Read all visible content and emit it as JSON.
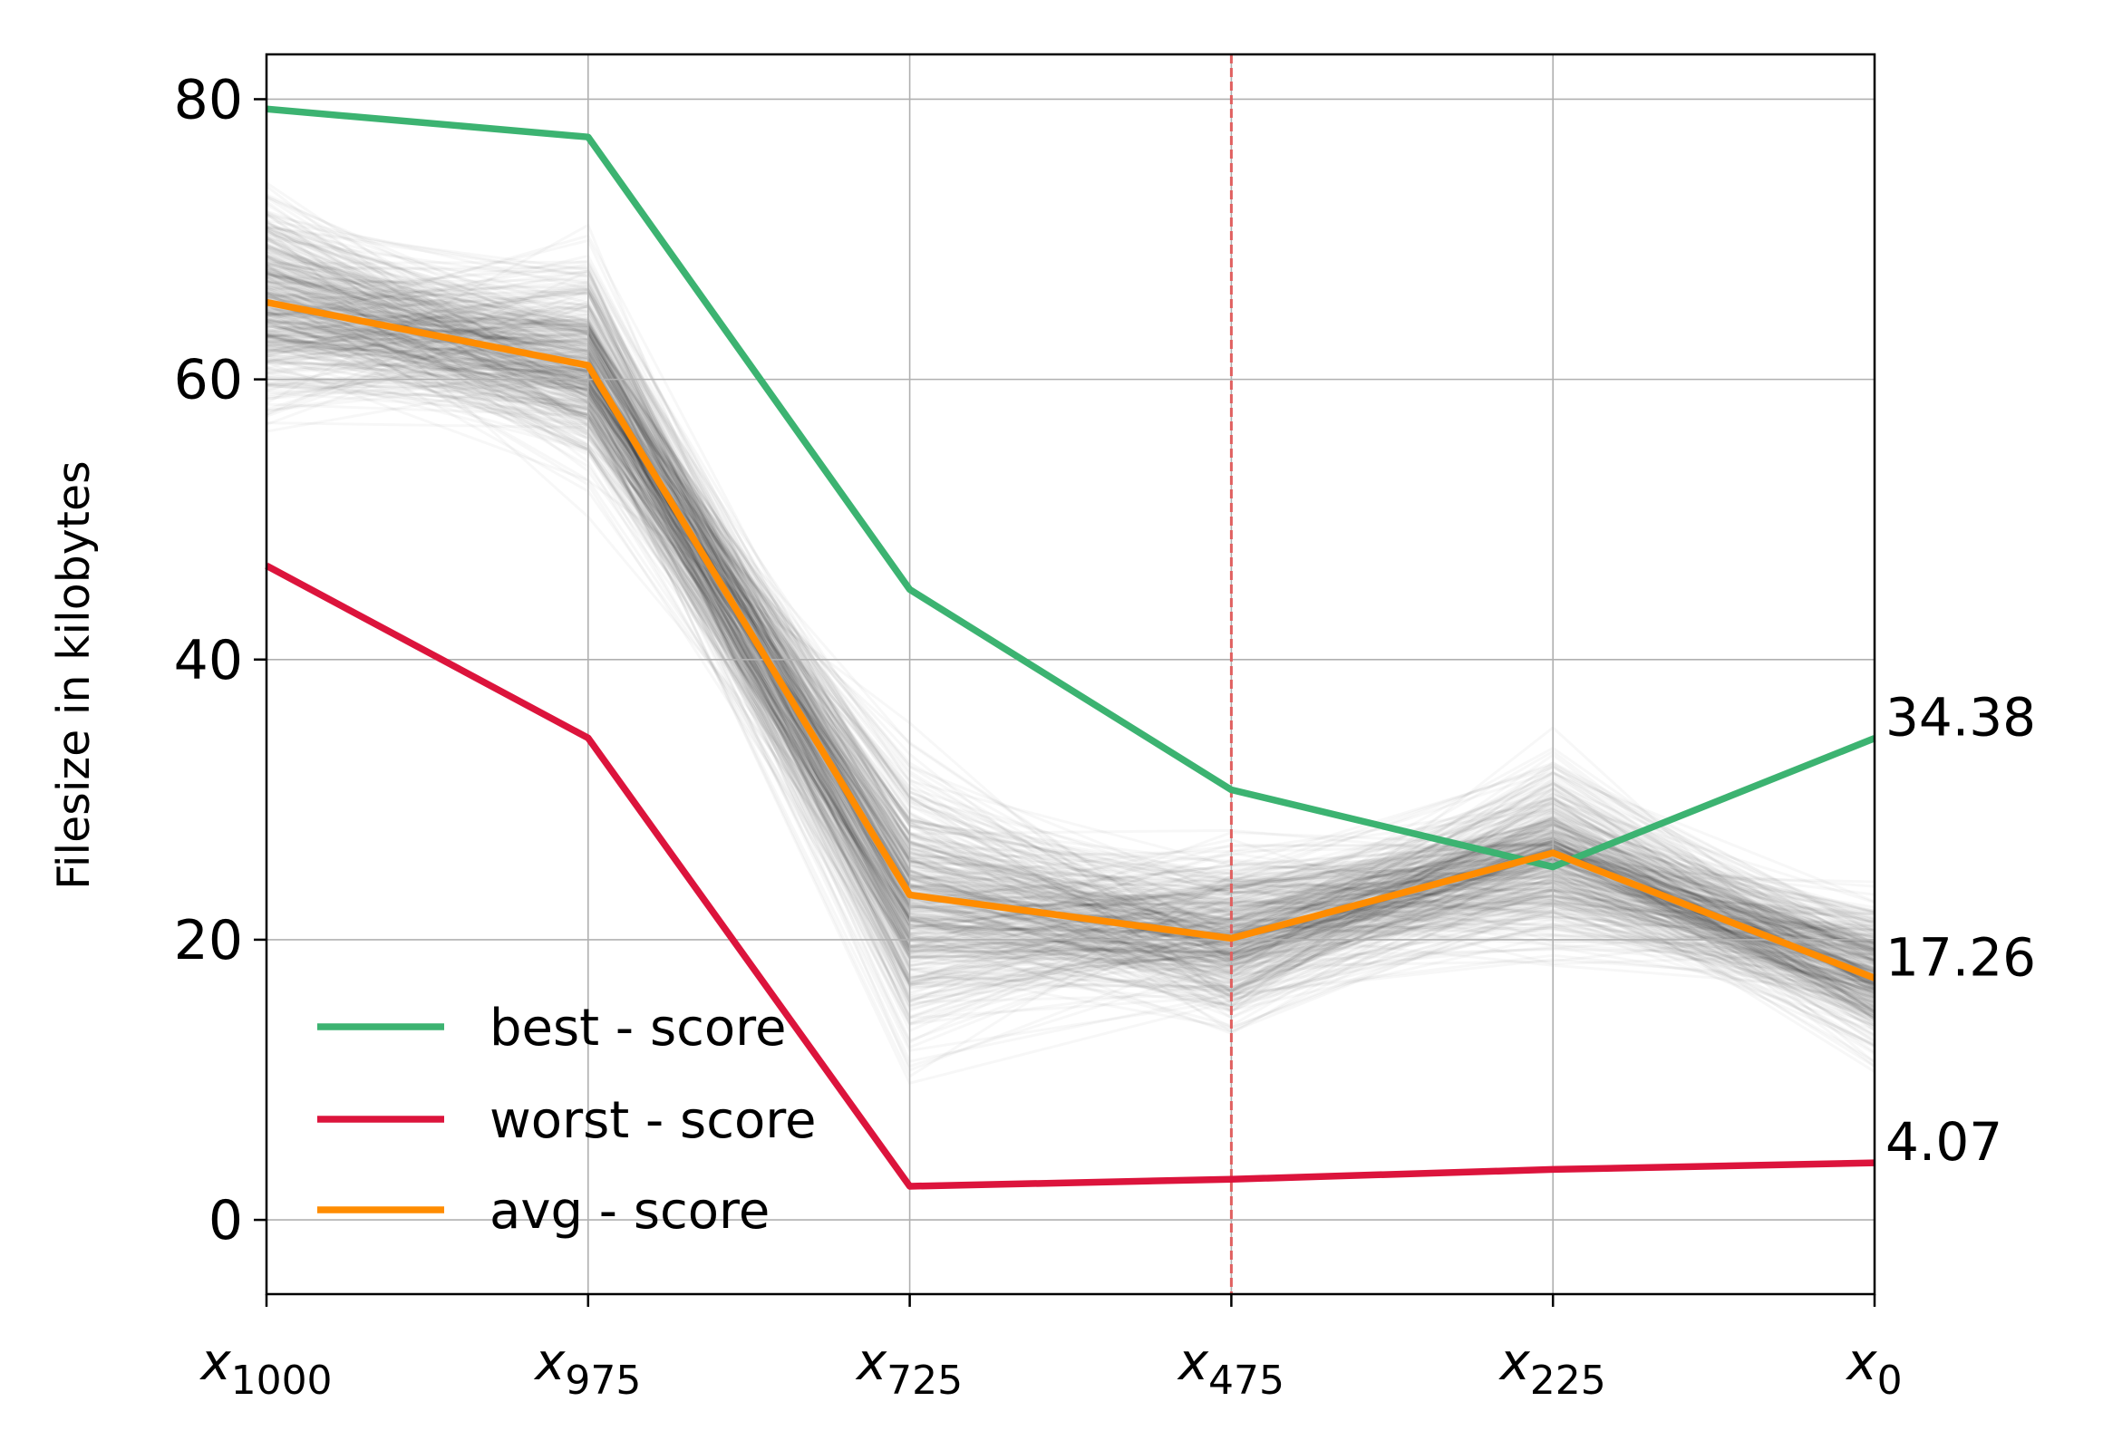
{
  "chart_data": {
    "type": "line",
    "xlabel": "",
    "ylabel": "Filesize in kilobytes",
    "ylim": [
      -5.3,
      83.2
    ],
    "yticks": [
      0,
      20,
      40,
      60,
      80
    ],
    "grid": true,
    "legend_placement": "lower-left",
    "categories": [
      {
        "base": "x",
        "sub": "1000"
      },
      {
        "base": "x",
        "sub": "975"
      },
      {
        "base": "x",
        "sub": "725"
      },
      {
        "base": "x",
        "sub": "475"
      },
      {
        "base": "x",
        "sub": "225"
      },
      {
        "base": "x",
        "sub": "0"
      }
    ],
    "highlight_category": {
      "base": "x",
      "sub": "475"
    },
    "highlight_color": "#e06060",
    "series": [
      {
        "name": "best - score",
        "color": "#3cb371",
        "values": [
          79.3,
          77.3,
          45.0,
          30.7,
          25.2,
          34.38
        ]
      },
      {
        "name": "worst - score",
        "color": "#dc143c",
        "values": [
          46.7,
          34.4,
          2.4,
          2.9,
          3.6,
          4.07
        ]
      },
      {
        "name": "avg - score",
        "color": "#ff8c00",
        "values": [
          65.5,
          61.0,
          23.2,
          20.1,
          26.2,
          17.26
        ]
      }
    ],
    "end_labels": [
      "34.38",
      "17.26",
      "4.07"
    ],
    "background_lines_note_color": "#000000"
  }
}
